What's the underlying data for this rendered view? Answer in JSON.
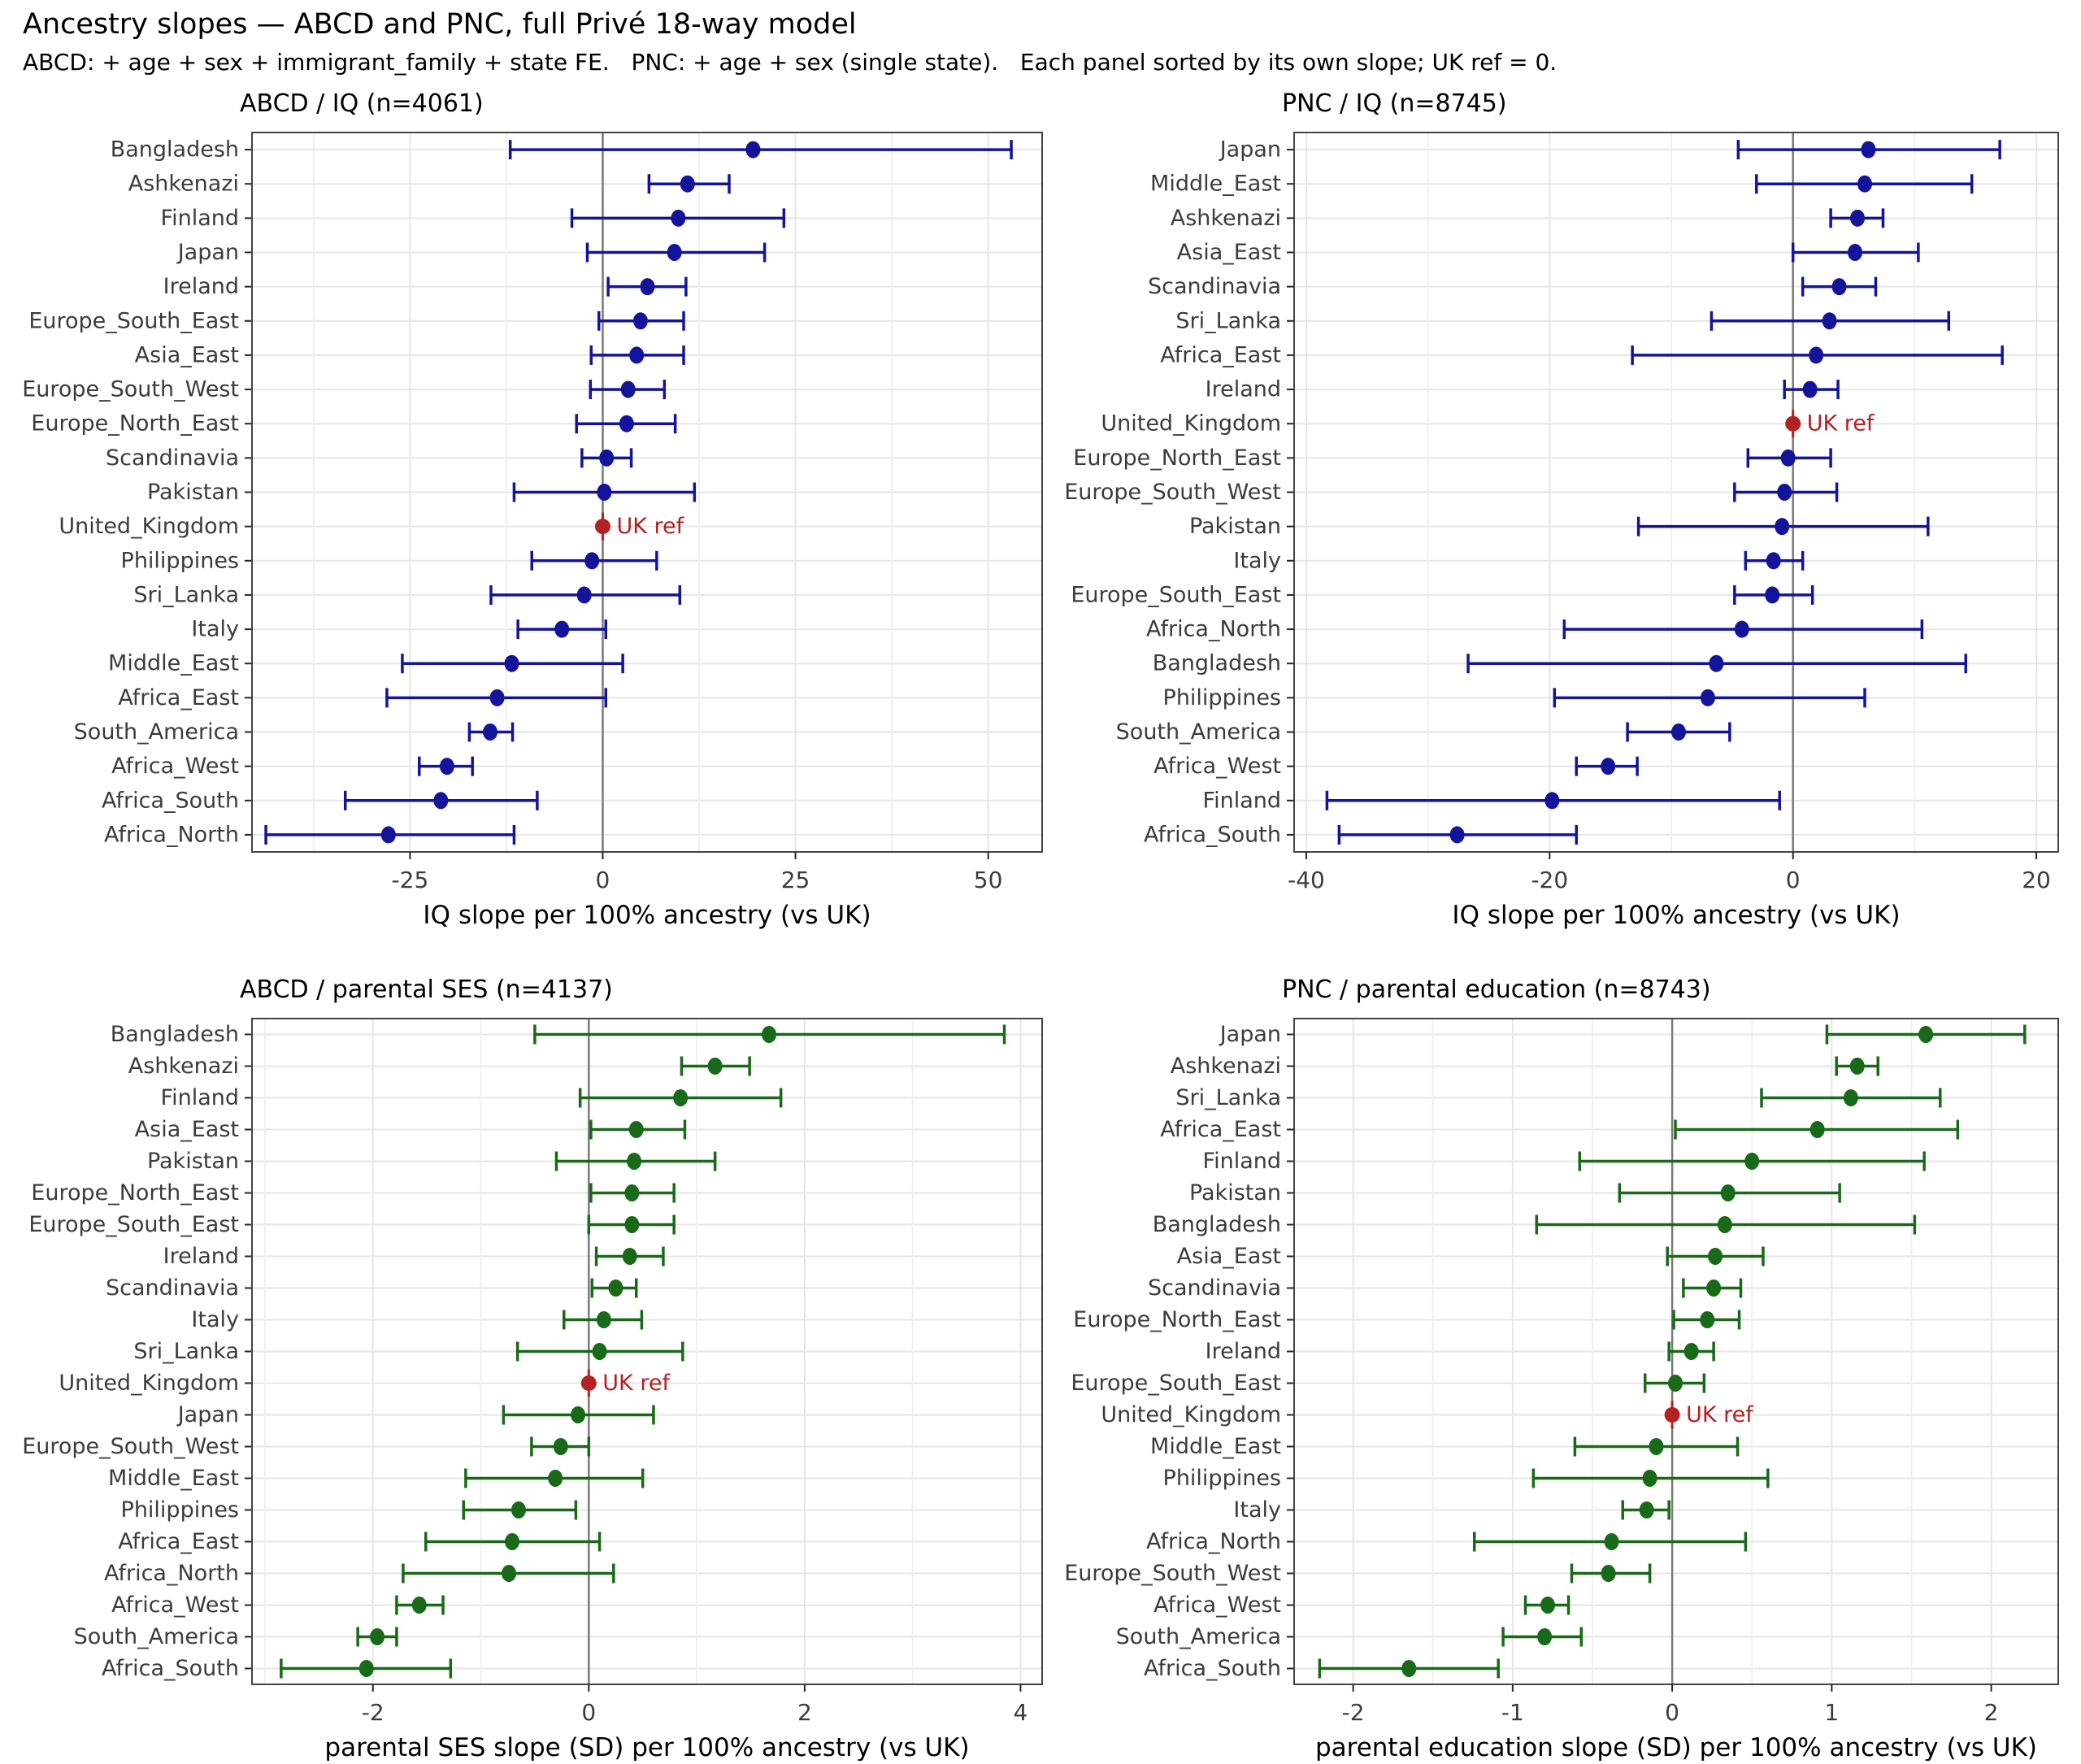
{
  "page": {
    "title": "Ancestry slopes — ABCD and PNC, full Privé 18-way model",
    "subtitle": "ABCD: + age + sex + immigrant_family + state FE.   PNC: + age + sex (single state).   Each panel sorted by its own slope; UK ref = 0."
  },
  "colors": {
    "blue_points": "#14149B",
    "green_points": "#186918",
    "ref_red": "#B22222",
    "zero_line": "#7a7a7a",
    "grid_major": "#e6e6e6",
    "grid_minor": "#f0f0f0",
    "panel_border": "#444444"
  },
  "chart_data": [
    {
      "type": "scatter",
      "style": "forest-dot-whisker",
      "title": "ABCD / IQ  (n=4061)",
      "xlabel": "IQ slope per 100% ancestry (vs UK)",
      "xlim": [
        -45.5,
        57
      ],
      "xticks": [
        -25,
        0,
        25,
        50
      ],
      "xminor": [
        -37.5,
        -12.5,
        12.5,
        37.5
      ],
      "point_color": "#14149B",
      "ref_label": "UK ref",
      "series": [
        {
          "name": "Bangladesh",
          "est": 19.5,
          "lo": -12.0,
          "hi": 53.0,
          "ref": false
        },
        {
          "name": "Ashkenazi",
          "est": 11.0,
          "lo": 6.0,
          "hi": 16.4,
          "ref": false
        },
        {
          "name": "Finland",
          "est": 9.8,
          "lo": -4.0,
          "hi": 23.5,
          "ref": false
        },
        {
          "name": "Japan",
          "est": 9.3,
          "lo": -2.0,
          "hi": 21.0,
          "ref": false
        },
        {
          "name": "Ireland",
          "est": 5.8,
          "lo": 0.7,
          "hi": 10.8,
          "ref": false
        },
        {
          "name": "Europe_South_East",
          "est": 4.9,
          "lo": -0.5,
          "hi": 10.5,
          "ref": false
        },
        {
          "name": "Asia_East",
          "est": 4.4,
          "lo": -1.5,
          "hi": 10.5,
          "ref": false
        },
        {
          "name": "Europe_South_West",
          "est": 3.3,
          "lo": -1.6,
          "hi": 8.0,
          "ref": false
        },
        {
          "name": "Europe_North_East",
          "est": 3.1,
          "lo": -3.4,
          "hi": 9.4,
          "ref": false
        },
        {
          "name": "Scandinavia",
          "est": 0.5,
          "lo": -2.7,
          "hi": 3.7,
          "ref": false
        },
        {
          "name": "Pakistan",
          "est": 0.2,
          "lo": -11.5,
          "hi": 11.9,
          "ref": false
        },
        {
          "name": "United_Kingdom",
          "est": 0.0,
          "lo": 0.0,
          "hi": 0.0,
          "ref": true
        },
        {
          "name": "Philippines",
          "est": -1.4,
          "lo": -9.2,
          "hi": 7.0,
          "ref": false
        },
        {
          "name": "Sri_Lanka",
          "est": -2.4,
          "lo": -14.5,
          "hi": 10.0,
          "ref": false
        },
        {
          "name": "Italy",
          "est": -5.3,
          "lo": -11.0,
          "hi": 0.4,
          "ref": false
        },
        {
          "name": "Middle_East",
          "est": -11.8,
          "lo": -26.0,
          "hi": 2.6,
          "ref": false
        },
        {
          "name": "Africa_East",
          "est": -13.7,
          "lo": -28.0,
          "hi": 0.4,
          "ref": false
        },
        {
          "name": "South_America",
          "est": -14.6,
          "lo": -17.3,
          "hi": -11.7,
          "ref": false
        },
        {
          "name": "Africa_West",
          "est": -20.2,
          "lo": -23.8,
          "hi": -16.9,
          "ref": false
        },
        {
          "name": "Africa_South",
          "est": -21.0,
          "lo": -33.4,
          "hi": -8.5,
          "ref": false
        },
        {
          "name": "Africa_North",
          "est": -27.8,
          "lo": -43.7,
          "hi": -11.5,
          "ref": false
        }
      ]
    },
    {
      "type": "scatter",
      "style": "forest-dot-whisker",
      "title": "PNC / IQ  (n=8745)",
      "xlabel": "IQ slope per 100% ancestry (vs UK)",
      "xlim": [
        -41,
        21.8
      ],
      "xticks": [
        -40,
        -20,
        0,
        20
      ],
      "xminor": [
        -30,
        -10,
        10
      ],
      "point_color": "#14149B",
      "ref_label": "UK ref",
      "series": [
        {
          "name": "Japan",
          "est": 6.2,
          "lo": -4.5,
          "hi": 17.0,
          "ref": false
        },
        {
          "name": "Middle_East",
          "est": 5.9,
          "lo": -3.0,
          "hi": 14.7,
          "ref": false
        },
        {
          "name": "Ashkenazi",
          "est": 5.3,
          "lo": 3.1,
          "hi": 7.4,
          "ref": false
        },
        {
          "name": "Asia_East",
          "est": 5.1,
          "lo": 0.0,
          "hi": 10.3,
          "ref": false
        },
        {
          "name": "Scandinavia",
          "est": 3.8,
          "lo": 0.8,
          "hi": 6.8,
          "ref": false
        },
        {
          "name": "Sri_Lanka",
          "est": 3.0,
          "lo": -6.7,
          "hi": 12.8,
          "ref": false
        },
        {
          "name": "Africa_East",
          "est": 1.9,
          "lo": -13.2,
          "hi": 17.2,
          "ref": false
        },
        {
          "name": "Ireland",
          "est": 1.4,
          "lo": -0.7,
          "hi": 3.7,
          "ref": false
        },
        {
          "name": "United_Kingdom",
          "est": 0.0,
          "lo": 0.0,
          "hi": 0.0,
          "ref": true
        },
        {
          "name": "Europe_North_East",
          "est": -0.4,
          "lo": -3.7,
          "hi": 3.1,
          "ref": false
        },
        {
          "name": "Europe_South_West",
          "est": -0.7,
          "lo": -4.8,
          "hi": 3.6,
          "ref": false
        },
        {
          "name": "Pakistan",
          "est": -0.9,
          "lo": -12.7,
          "hi": 11.1,
          "ref": false
        },
        {
          "name": "Italy",
          "est": -1.6,
          "lo": -3.9,
          "hi": 0.8,
          "ref": false
        },
        {
          "name": "Europe_South_East",
          "est": -1.7,
          "lo": -4.8,
          "hi": 1.6,
          "ref": false
        },
        {
          "name": "Africa_North",
          "est": -4.2,
          "lo": -18.8,
          "hi": 10.6,
          "ref": false
        },
        {
          "name": "Bangladesh",
          "est": -6.3,
          "lo": -26.7,
          "hi": 14.2,
          "ref": false
        },
        {
          "name": "Philippines",
          "est": -7.0,
          "lo": -19.6,
          "hi": 5.9,
          "ref": false
        },
        {
          "name": "South_America",
          "est": -9.4,
          "lo": -13.6,
          "hi": -5.2,
          "ref": false
        },
        {
          "name": "Africa_West",
          "est": -15.2,
          "lo": -17.8,
          "hi": -12.8,
          "ref": false
        },
        {
          "name": "Finland",
          "est": -19.8,
          "lo": -38.3,
          "hi": -1.1,
          "ref": false
        },
        {
          "name": "Africa_South",
          "est": -27.6,
          "lo": -37.3,
          "hi": -17.8,
          "ref": false
        }
      ]
    },
    {
      "type": "scatter",
      "style": "forest-dot-whisker",
      "title": "ABCD / parental SES  (n=4137)",
      "xlabel": "parental SES slope (SD) per 100% ancestry (vs UK)",
      "xlim": [
        -3.12,
        4.2
      ],
      "xticks": [
        -2,
        0,
        2,
        4
      ],
      "xminor": [
        -3,
        -1,
        1,
        3
      ],
      "point_color": "#186918",
      "ref_label": "UK ref",
      "series": [
        {
          "name": "Bangladesh",
          "est": 1.67,
          "lo": -0.5,
          "hi": 3.85,
          "ref": false
        },
        {
          "name": "Ashkenazi",
          "est": 1.17,
          "lo": 0.86,
          "hi": 1.49,
          "ref": false
        },
        {
          "name": "Finland",
          "est": 0.85,
          "lo": -0.08,
          "hi": 1.78,
          "ref": false
        },
        {
          "name": "Asia_East",
          "est": 0.44,
          "lo": 0.02,
          "hi": 0.89,
          "ref": false
        },
        {
          "name": "Pakistan",
          "est": 0.42,
          "lo": -0.3,
          "hi": 1.17,
          "ref": false
        },
        {
          "name": "Europe_North_East",
          "est": 0.4,
          "lo": 0.02,
          "hi": 0.79,
          "ref": false
        },
        {
          "name": "Europe_South_East",
          "est": 0.4,
          "lo": 0.0,
          "hi": 0.79,
          "ref": false
        },
        {
          "name": "Ireland",
          "est": 0.38,
          "lo": 0.07,
          "hi": 0.69,
          "ref": false
        },
        {
          "name": "Scandinavia",
          "est": 0.25,
          "lo": 0.03,
          "hi": 0.44,
          "ref": false
        },
        {
          "name": "Italy",
          "est": 0.14,
          "lo": -0.23,
          "hi": 0.49,
          "ref": false
        },
        {
          "name": "Sri_Lanka",
          "est": 0.1,
          "lo": -0.66,
          "hi": 0.87,
          "ref": false
        },
        {
          "name": "United_Kingdom",
          "est": 0.0,
          "lo": 0.0,
          "hi": 0.0,
          "ref": true
        },
        {
          "name": "Japan",
          "est": -0.1,
          "lo": -0.79,
          "hi": 0.6,
          "ref": false
        },
        {
          "name": "Europe_South_West",
          "est": -0.26,
          "lo": -0.53,
          "hi": 0.0,
          "ref": false
        },
        {
          "name": "Middle_East",
          "est": -0.31,
          "lo": -1.14,
          "hi": 0.5,
          "ref": false
        },
        {
          "name": "Philippines",
          "est": -0.65,
          "lo": -1.16,
          "hi": -0.12,
          "ref": false
        },
        {
          "name": "Africa_East",
          "est": -0.71,
          "lo": -1.51,
          "hi": 0.1,
          "ref": false
        },
        {
          "name": "Africa_North",
          "est": -0.74,
          "lo": -1.72,
          "hi": 0.23,
          "ref": false
        },
        {
          "name": "Africa_West",
          "est": -1.57,
          "lo": -1.78,
          "hi": -1.35,
          "ref": false
        },
        {
          "name": "South_America",
          "est": -1.96,
          "lo": -2.14,
          "hi": -1.78,
          "ref": false
        },
        {
          "name": "Africa_South",
          "est": -2.06,
          "lo": -2.85,
          "hi": -1.28,
          "ref": false
        }
      ]
    },
    {
      "type": "scatter",
      "style": "forest-dot-whisker",
      "title": "PNC / parental education  (n=8743)",
      "xlabel": "parental education slope (SD) per 100% ancestry (vs UK)",
      "xlim": [
        -2.37,
        2.42
      ],
      "xticks": [
        -2,
        -1,
        0,
        1,
        2
      ],
      "xminor": [
        -1.5,
        -0.5,
        0.5,
        1.5
      ],
      "point_color": "#186918",
      "ref_label": "UK ref",
      "series": [
        {
          "name": "Japan",
          "est": 1.59,
          "lo": 0.97,
          "hi": 2.21,
          "ref": false
        },
        {
          "name": "Ashkenazi",
          "est": 1.16,
          "lo": 1.03,
          "hi": 1.29,
          "ref": false
        },
        {
          "name": "Sri_Lanka",
          "est": 1.12,
          "lo": 0.56,
          "hi": 1.68,
          "ref": false
        },
        {
          "name": "Africa_East",
          "est": 0.91,
          "lo": 0.02,
          "hi": 1.79,
          "ref": false
        },
        {
          "name": "Finland",
          "est": 0.5,
          "lo": -0.58,
          "hi": 1.58,
          "ref": false
        },
        {
          "name": "Pakistan",
          "est": 0.35,
          "lo": -0.33,
          "hi": 1.05,
          "ref": false
        },
        {
          "name": "Bangladesh",
          "est": 0.33,
          "lo": -0.85,
          "hi": 1.52,
          "ref": false
        },
        {
          "name": "Asia_East",
          "est": 0.27,
          "lo": -0.03,
          "hi": 0.57,
          "ref": false
        },
        {
          "name": "Scandinavia",
          "est": 0.26,
          "lo": 0.07,
          "hi": 0.43,
          "ref": false
        },
        {
          "name": "Europe_North_East",
          "est": 0.22,
          "lo": 0.01,
          "hi": 0.42,
          "ref": false
        },
        {
          "name": "Ireland",
          "est": 0.12,
          "lo": -0.02,
          "hi": 0.26,
          "ref": false
        },
        {
          "name": "Europe_South_East",
          "est": 0.02,
          "lo": -0.17,
          "hi": 0.2,
          "ref": false
        },
        {
          "name": "United_Kingdom",
          "est": 0.0,
          "lo": 0.0,
          "hi": 0.0,
          "ref": true
        },
        {
          "name": "Middle_East",
          "est": -0.1,
          "lo": -0.61,
          "hi": 0.41,
          "ref": false
        },
        {
          "name": "Philippines",
          "est": -0.14,
          "lo": -0.87,
          "hi": 0.6,
          "ref": false
        },
        {
          "name": "Italy",
          "est": -0.16,
          "lo": -0.31,
          "hi": -0.02,
          "ref": false
        },
        {
          "name": "Africa_North",
          "est": -0.38,
          "lo": -1.24,
          "hi": 0.46,
          "ref": false
        },
        {
          "name": "Europe_South_West",
          "est": -0.4,
          "lo": -0.63,
          "hi": -0.14,
          "ref": false
        },
        {
          "name": "Africa_West",
          "est": -0.78,
          "lo": -0.92,
          "hi": -0.65,
          "ref": false
        },
        {
          "name": "South_America",
          "est": -0.8,
          "lo": -1.06,
          "hi": -0.57,
          "ref": false
        },
        {
          "name": "Africa_South",
          "est": -1.65,
          "lo": -2.21,
          "hi": -1.09,
          "ref": false
        }
      ]
    }
  ]
}
